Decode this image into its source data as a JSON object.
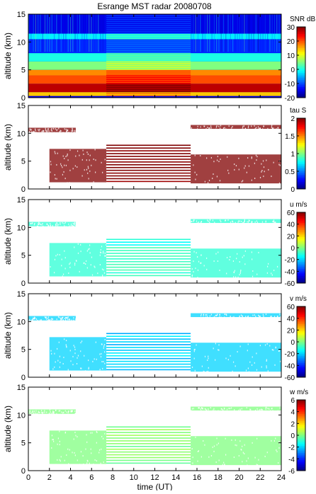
{
  "title": "Esrange MST radar 20080708",
  "chart_data": [
    {
      "type": "heatmap",
      "id": "snr",
      "ylabel": "altitude (km)",
      "xlim": [
        0,
        24
      ],
      "ylim": [
        0,
        15
      ],
      "y_ticks": [
        0,
        5,
        10,
        15
      ],
      "colorbar_label": "SNR dB",
      "colorbar_range": [
        -20,
        30
      ],
      "colorbar_ticks": [
        30,
        20,
        10,
        0,
        -10,
        -20
      ],
      "gap_hours": [
        7.4,
        15.4
      ],
      "layers": [
        {
          "alt": [
            0.3,
            1.0
          ],
          "value": 14
        },
        {
          "alt": [
            1.0,
            2.5
          ],
          "value": 27
        },
        {
          "alt": [
            2.5,
            4.0
          ],
          "value": 20
        },
        {
          "alt": [
            4.0,
            5.0
          ],
          "value": 17
        },
        {
          "alt": [
            5.0,
            6.5
          ],
          "value": 5
        },
        {
          "alt": [
            6.5,
            8.0
          ],
          "value": 0
        },
        {
          "alt": [
            8.0,
            10.5
          ],
          "value": -12
        },
        {
          "alt": [
            10.5,
            11.5
          ],
          "value": -2
        },
        {
          "alt": [
            11.5,
            15
          ],
          "value": -15
        }
      ]
    },
    {
      "type": "heatmap",
      "id": "tau",
      "ylabel": "altitude (km)",
      "xlim": [
        0,
        24
      ],
      "ylim": [
        0,
        15
      ],
      "y_ticks": [
        0,
        5,
        10,
        15
      ],
      "colorbar_label": "tau S",
      "colorbar_range": [
        0,
        2
      ],
      "colorbar_ticks": [
        2,
        1.5,
        1,
        0.5,
        0
      ],
      "dominant_value": 2,
      "coverage": [
        {
          "time": [
            2.0,
            7.4
          ],
          "alt": [
            1.2,
            7.2
          ]
        },
        {
          "time": [
            7.4,
            15.4
          ],
          "alt": [
            1.3,
            8.2
          ]
        },
        {
          "time": [
            15.4,
            24.0
          ],
          "alt": [
            1.0,
            6.2
          ]
        },
        {
          "time": [
            0.0,
            4.5
          ],
          "alt": [
            10.2,
            11.0
          ]
        },
        {
          "time": [
            15.4,
            24.0
          ],
          "alt": [
            10.8,
            11.5
          ]
        }
      ]
    },
    {
      "type": "heatmap",
      "id": "u",
      "ylabel": "altitude (km)",
      "xlim": [
        0,
        24
      ],
      "ylim": [
        0,
        15
      ],
      "y_ticks": [
        0,
        5,
        10,
        15
      ],
      "colorbar_label": "u m/s",
      "colorbar_range": [
        -60,
        60
      ],
      "colorbar_ticks": [
        60,
        40,
        20,
        0,
        -20,
        -40,
        -60
      ],
      "dominant_value": -10
    },
    {
      "type": "heatmap",
      "id": "v",
      "ylabel": "altitude (km)",
      "xlim": [
        0,
        24
      ],
      "ylim": [
        0,
        15
      ],
      "y_ticks": [
        0,
        5,
        10,
        15
      ],
      "colorbar_label": "v m/s",
      "colorbar_range": [
        -60,
        60
      ],
      "colorbar_ticks": [
        60,
        40,
        20,
        0,
        -20,
        -40,
        -60
      ],
      "dominant_value": -20
    },
    {
      "type": "heatmap",
      "id": "w",
      "ylabel": "altitude (km)",
      "xlabel": "time (UT)",
      "xlim": [
        0,
        24
      ],
      "ylim": [
        0,
        15
      ],
      "y_ticks": [
        0,
        5,
        10,
        15
      ],
      "x_ticks": [
        0,
        2,
        4,
        6,
        8,
        10,
        12,
        14,
        16,
        18,
        20,
        22,
        24
      ],
      "colorbar_label": "w m/s",
      "colorbar_range": [
        -6,
        6
      ],
      "colorbar_ticks": [
        6,
        4,
        2,
        0,
        -2,
        -4,
        -6
      ],
      "dominant_value": 0
    }
  ]
}
